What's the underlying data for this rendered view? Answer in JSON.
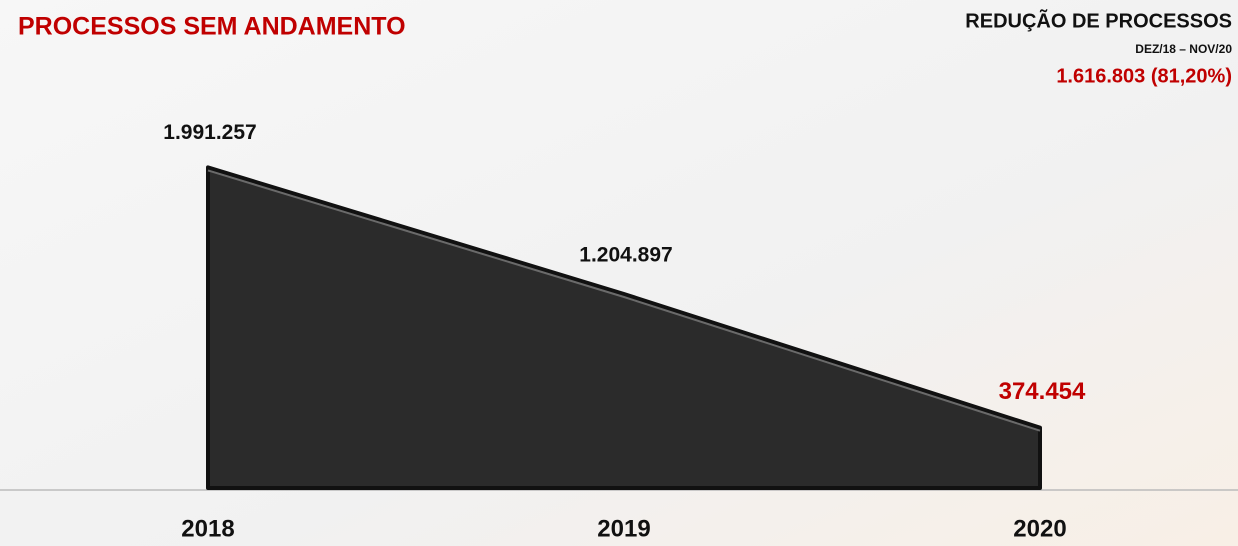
{
  "chart_data": {
    "type": "area",
    "title": "PROCESSOS SEM ANDAMENTO",
    "annotations": [
      "REDUÇÃO DE PROCESSOS",
      "DEZ/18 – NOV/20",
      "1.616.803 (81,20%)"
    ],
    "categories": [
      "2018",
      "2019",
      "2020"
    ],
    "values": [
      1991257,
      1204897,
      374454
    ],
    "value_labels": [
      "1.991.257",
      "1.204.897",
      "374.454"
    ],
    "value_label_colors": [
      "#111111",
      "#111111",
      "#c00000"
    ],
    "color": "#2b2b2b",
    "ylim": [
      0,
      2000000
    ]
  }
}
